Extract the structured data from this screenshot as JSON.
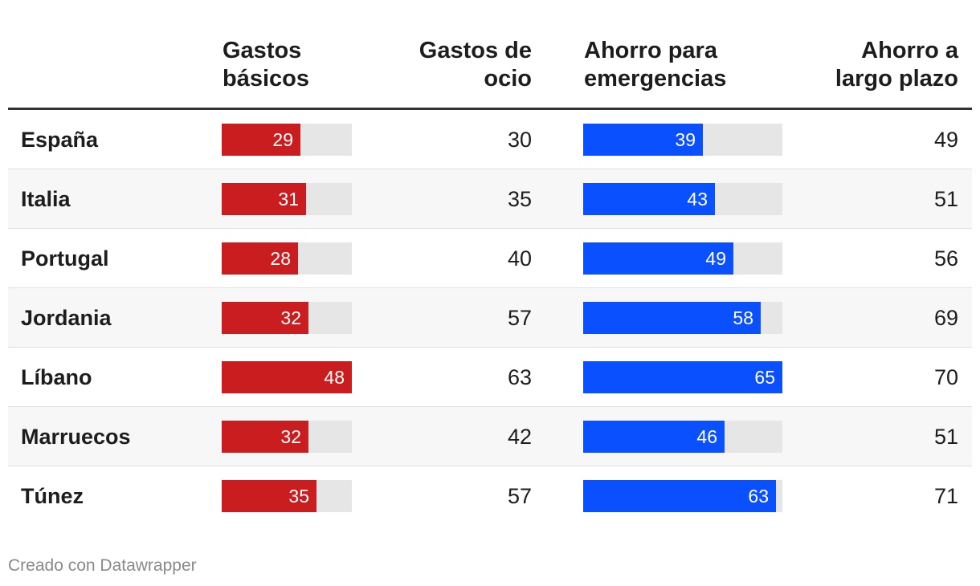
{
  "chart_data": {
    "type": "table",
    "columns": [
      {
        "key": "country",
        "label": [
          "",
          ""
        ]
      },
      {
        "key": "gastos_basicos",
        "label": [
          "Gastos",
          "básicos"
        ],
        "display": "bar",
        "max": 48,
        "color": "#c91d1f"
      },
      {
        "key": "gastos_ocio",
        "label": [
          "Gastos de",
          "ocio"
        ],
        "display": "number"
      },
      {
        "key": "ahorro_emergencias",
        "label": [
          "Ahorro para",
          "emergencias"
        ],
        "display": "bar",
        "max": 65,
        "color": "#0a50ff"
      },
      {
        "key": "ahorro_largo_plazo",
        "label": [
          "Ahorro a",
          "largo plazo"
        ],
        "display": "number"
      }
    ],
    "rows": [
      {
        "country": "España",
        "gastos_basicos": 29,
        "gastos_ocio": 30,
        "ahorro_emergencias": 39,
        "ahorro_largo_plazo": 49
      },
      {
        "country": "Italia",
        "gastos_basicos": 31,
        "gastos_ocio": 35,
        "ahorro_emergencias": 43,
        "ahorro_largo_plazo": 51
      },
      {
        "country": "Portugal",
        "gastos_basicos": 28,
        "gastos_ocio": 40,
        "ahorro_emergencias": 49,
        "ahorro_largo_plazo": 56
      },
      {
        "country": "Jordania",
        "gastos_basicos": 32,
        "gastos_ocio": 57,
        "ahorro_emergencias": 58,
        "ahorro_largo_plazo": 69
      },
      {
        "country": "Líbano",
        "gastos_basicos": 48,
        "gastos_ocio": 63,
        "ahorro_emergencias": 65,
        "ahorro_largo_plazo": 70
      },
      {
        "country": "Marruecos",
        "gastos_basicos": 32,
        "gastos_ocio": 42,
        "ahorro_emergencias": 46,
        "ahorro_largo_plazo": 51
      },
      {
        "country": "Túnez",
        "gastos_basicos": 35,
        "gastos_ocio": 57,
        "ahorro_emergencias": 63,
        "ahorro_largo_plazo": 71
      }
    ]
  },
  "footer": {
    "credit": "Creado con Datawrapper"
  }
}
